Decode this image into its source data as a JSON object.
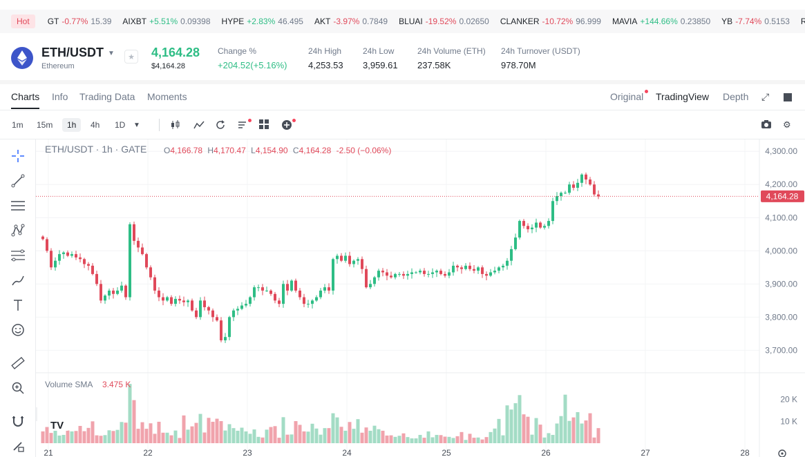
{
  "ticker": {
    "hot": "Hot",
    "items": [
      {
        "sym": "GT",
        "chg": "-0.77%",
        "dir": "dn",
        "price": "15.39"
      },
      {
        "sym": "AIXBT",
        "chg": "+5.51%",
        "dir": "up",
        "price": "0.09398"
      },
      {
        "sym": "HYPE",
        "chg": "+2.83%",
        "dir": "up",
        "price": "46.495"
      },
      {
        "sym": "AKT",
        "chg": "-3.97%",
        "dir": "dn",
        "price": "0.7849"
      },
      {
        "sym": "BLUAI",
        "chg": "-19.52%",
        "dir": "dn",
        "price": "0.02650"
      },
      {
        "sym": "CLANKER",
        "chg": "-10.72%",
        "dir": "dn",
        "price": "96.999"
      },
      {
        "sym": "MAVIA",
        "chg": "+144.66%",
        "dir": "up",
        "price": "0.23850"
      },
      {
        "sym": "YB",
        "chg": "-7.74%",
        "dir": "dn",
        "price": "0.5153"
      },
      {
        "sym": "REC",
        "chg": "",
        "dir": "dn",
        "price": ""
      }
    ]
  },
  "header": {
    "pair": "ETH/USDT",
    "name": "Ethereum",
    "price": "4,164.28",
    "price_usd": "$4,164.28",
    "change_label": "Change %",
    "change_value": "+204.52(+5.16%)",
    "high_label": "24h High",
    "high_value": "4,253.53",
    "low_label": "24h Low",
    "low_value": "3,959.61",
    "vol_label": "24h Volume (ETH)",
    "vol_value": "237.58K",
    "turnover_label": "24h Turnover (USDT)",
    "turnover_value": "978.70M"
  },
  "tabs": {
    "charts": "Charts",
    "info": "Info",
    "trading_data": "Trading Data",
    "moments": "Moments",
    "original": "Original",
    "tradingview": "TradingView",
    "depth": "Depth"
  },
  "timeframes": [
    "1m",
    "15m",
    "1h",
    "4h",
    "1D"
  ],
  "colors": {
    "up": "#2ebd85",
    "down": "#e0495a",
    "vol_up": "#a3dcc5",
    "vol_down": "#f0a3ac"
  },
  "legend": {
    "title": "ETH/USDT · 1h · GATE",
    "o_label": "O",
    "o": "4,166.78",
    "h_label": "H",
    "h": "4,170.47",
    "l_label": "L",
    "l": "4,154.90",
    "c_label": "C",
    "c": "4,164.28",
    "chg": "-2.50 (−0.06%)",
    "vol_label": "Volume SMA",
    "vol_value": "3.475 K"
  },
  "chart_data": {
    "type": "candlestick",
    "y_ticks": [
      "4,300.00",
      "4,200.00",
      "4,100.00",
      "4,000.00",
      "3,900.00",
      "3,800.00",
      "3,700.00"
    ],
    "y_tick_values": [
      4300,
      4200,
      4100,
      4000,
      3900,
      3800,
      3700
    ],
    "ylim": [
      3680,
      4315
    ],
    "x_ticks": [
      "21",
      "22",
      "23",
      "24",
      "25",
      "26",
      "27",
      "28"
    ],
    "current_price": "4,164.28",
    "current_value": 4164.28,
    "vol_ticks": [
      "20 K",
      "10 K"
    ],
    "vol_tick_values": [
      20000,
      10000
    ],
    "vol_max": 30000,
    "closes": [
      4035,
      4000,
      3950,
      3970,
      3990,
      3995,
      3985,
      3990,
      3980,
      3975,
      3960,
      3955,
      3930,
      3900,
      3850,
      3865,
      3880,
      3870,
      3880,
      3895,
      3860,
      4080,
      4030,
      4010,
      3990,
      3950,
      3920,
      3880,
      3860,
      3850,
      3860,
      3840,
      3855,
      3850,
      3845,
      3850,
      3820,
      3800,
      3850,
      3830,
      3820,
      3800,
      3790,
      3730,
      3740,
      3800,
      3820,
      3825,
      3835,
      3840,
      3860,
      3890,
      3890,
      3880,
      3880,
      3870,
      3850,
      3840,
      3900,
      3880,
      3910,
      3880,
      3860,
      3840,
      3840,
      3850,
      3860,
      3880,
      3890,
      3880,
      3975,
      3985,
      3970,
      3985,
      3960,
      3970,
      3975,
      3945,
      3890,
      3900,
      3920,
      3940,
      3935,
      3925,
      3920,
      3930,
      3930,
      3925,
      3930,
      3935,
      3935,
      3940,
      3930,
      3930,
      3935,
      3940,
      3930,
      3925,
      3935,
      3955,
      3950,
      3945,
      3955,
      3945,
      3940,
      3950,
      3930,
      3925,
      3935,
      3940,
      3950,
      3955,
      3970,
      4005,
      4040,
      4090,
      4075,
      4065,
      4070,
      4085,
      4070,
      4075,
      4090,
      4150,
      4165,
      4175,
      4175,
      4200,
      4190,
      4205,
      4230,
      4215,
      4200,
      4170,
      4164
    ],
    "volumes": [
      5400,
      7400,
      4700,
      6600,
      3500,
      3800,
      5800,
      5400,
      5600,
      7900,
      5500,
      7000,
      10000,
      3600,
      3400,
      3700,
      5900,
      5600,
      6100,
      9700,
      9400,
      27100,
      19700,
      6600,
      9600,
      6600,
      9100,
      4300,
      9800,
      4800,
      4800,
      3600,
      5800,
      2400,
      12700,
      6200,
      7700,
      9300,
      13400,
      4900,
      11600,
      9800,
      11200,
      10100,
      5800,
      8700,
      6900,
      5700,
      7100,
      5400,
      4300,
      6300,
      2900,
      2600,
      6200,
      7400,
      7800,
      2500,
      11900,
      3900,
      4000,
      10100,
      8400,
      5400,
      5300,
      8900,
      6700,
      3900,
      6900,
      6900,
      13700,
      11800,
      7500,
      5700,
      9700,
      6600,
      11000,
      4800,
      7200,
      5700,
      8000,
      6400,
      5700,
      3500,
      3600,
      2900,
      3400,
      4500,
      2800,
      2200,
      2200,
      3800,
      2500,
      5400,
      2700,
      3800,
      3700,
      3000,
      2900,
      2400,
      3200,
      5100,
      1500,
      4300,
      2500,
      2600,
      1700,
      2800,
      5100,
      6700,
      11100,
      3600,
      17300,
      15400,
      18300,
      22000,
      13200,
      12100,
      3900,
      11500,
      8500,
      2600,
      4600,
      3800,
      9000,
      12400,
      22200,
      10200,
      11800,
      14200,
      9000,
      10400,
      13700,
      2600,
      6900
    ]
  }
}
